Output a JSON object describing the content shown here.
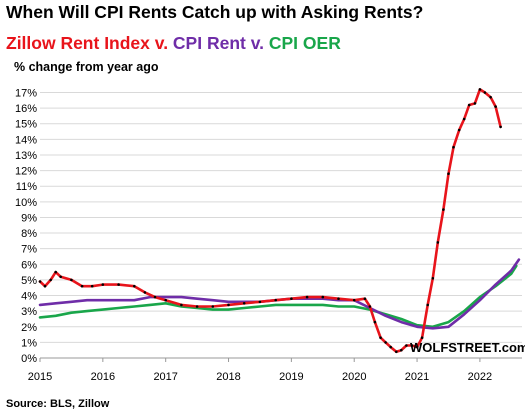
{
  "chart_data": {
    "type": "line",
    "title": "When Will CPI Rents Catch up with Asking Rents?",
    "subtitle_parts": [
      {
        "text": "Zillow Rent Index v. ",
        "color": "#e8141b"
      },
      {
        "text": "CPI Rent v. ",
        "color": "#6f2da8"
      },
      {
        "text": "CPI OER",
        "color": "#19a64a"
      }
    ],
    "ylabel": "% change from year ago",
    "source": "Source: BLS, Zillow",
    "brand": "WOLFSTREET.com",
    "xlim": [
      2015.0,
      2022.67
    ],
    "ylim": [
      0,
      17.8
    ],
    "x_ticks": [
      2015,
      2016,
      2017,
      2018,
      2019,
      2020,
      2021,
      2022
    ],
    "x_tick_labels": [
      "2015",
      "2016",
      "2017",
      "2018",
      "2019",
      "2020",
      "2021",
      "2022"
    ],
    "y_ticks": [
      0,
      1,
      2,
      3,
      4,
      5,
      6,
      7,
      8,
      9,
      10,
      11,
      12,
      13,
      14,
      15,
      16,
      17
    ],
    "y_tick_labels": [
      "0%",
      "1%",
      "2%",
      "3%",
      "4%",
      "5%",
      "6%",
      "7%",
      "8%",
      "9%",
      "10%",
      "11%",
      "12%",
      "13%",
      "14%",
      "15%",
      "16%",
      "17%"
    ],
    "grid": true,
    "series": [
      {
        "name": "CPI OER",
        "color": "#19a64a",
        "markers": false,
        "points": [
          [
            2015.0,
            2.6
          ],
          [
            2015.25,
            2.7
          ],
          [
            2015.5,
            2.9
          ],
          [
            2015.75,
            3.0
          ],
          [
            2016.0,
            3.1
          ],
          [
            2016.25,
            3.2
          ],
          [
            2016.5,
            3.3
          ],
          [
            2016.75,
            3.4
          ],
          [
            2017.0,
            3.5
          ],
          [
            2017.25,
            3.3
          ],
          [
            2017.5,
            3.2
          ],
          [
            2017.75,
            3.1
          ],
          [
            2018.0,
            3.1
          ],
          [
            2018.25,
            3.2
          ],
          [
            2018.5,
            3.3
          ],
          [
            2018.75,
            3.4
          ],
          [
            2019.0,
            3.4
          ],
          [
            2019.25,
            3.4
          ],
          [
            2019.5,
            3.4
          ],
          [
            2019.75,
            3.3
          ],
          [
            2020.0,
            3.3
          ],
          [
            2020.25,
            3.1
          ],
          [
            2020.5,
            2.8
          ],
          [
            2020.75,
            2.5
          ],
          [
            2021.0,
            2.1
          ],
          [
            2021.25,
            2.0
          ],
          [
            2021.5,
            2.3
          ],
          [
            2021.75,
            3.0
          ],
          [
            2022.0,
            3.9
          ],
          [
            2022.25,
            4.6
          ],
          [
            2022.5,
            5.4
          ],
          [
            2022.58,
            5.9
          ]
        ]
      },
      {
        "name": "CPI Rent",
        "color": "#6f2da8",
        "markers": false,
        "points": [
          [
            2015.0,
            3.4
          ],
          [
            2015.25,
            3.5
          ],
          [
            2015.5,
            3.6
          ],
          [
            2015.75,
            3.7
          ],
          [
            2016.0,
            3.7
          ],
          [
            2016.25,
            3.7
          ],
          [
            2016.5,
            3.7
          ],
          [
            2016.75,
            3.9
          ],
          [
            2017.0,
            3.9
          ],
          [
            2017.25,
            3.9
          ],
          [
            2017.5,
            3.8
          ],
          [
            2017.75,
            3.7
          ],
          [
            2018.0,
            3.6
          ],
          [
            2018.25,
            3.6
          ],
          [
            2018.5,
            3.6
          ],
          [
            2018.75,
            3.7
          ],
          [
            2019.0,
            3.8
          ],
          [
            2019.25,
            3.8
          ],
          [
            2019.5,
            3.8
          ],
          [
            2019.75,
            3.7
          ],
          [
            2020.0,
            3.7
          ],
          [
            2020.25,
            3.2
          ],
          [
            2020.5,
            2.7
          ],
          [
            2020.75,
            2.3
          ],
          [
            2021.0,
            2.0
          ],
          [
            2021.25,
            1.9
          ],
          [
            2021.5,
            2.0
          ],
          [
            2021.75,
            2.8
          ],
          [
            2022.0,
            3.7
          ],
          [
            2022.25,
            4.7
          ],
          [
            2022.5,
            5.6
          ],
          [
            2022.62,
            6.3
          ]
        ]
      },
      {
        "name": "Zillow Rent Index",
        "color": "#e8141b",
        "markers": true,
        "points": [
          [
            2015.0,
            4.9
          ],
          [
            2015.08,
            4.6
          ],
          [
            2015.17,
            5.0
          ],
          [
            2015.25,
            5.5
          ],
          [
            2015.33,
            5.2
          ],
          [
            2015.5,
            5.0
          ],
          [
            2015.67,
            4.6
          ],
          [
            2015.83,
            4.6
          ],
          [
            2016.0,
            4.7
          ],
          [
            2016.25,
            4.7
          ],
          [
            2016.5,
            4.6
          ],
          [
            2016.67,
            4.2
          ],
          [
            2016.83,
            3.9
          ],
          [
            2017.0,
            3.7
          ],
          [
            2017.25,
            3.4
          ],
          [
            2017.5,
            3.3
          ],
          [
            2017.75,
            3.3
          ],
          [
            2018.0,
            3.4
          ],
          [
            2018.25,
            3.5
          ],
          [
            2018.5,
            3.6
          ],
          [
            2018.75,
            3.7
          ],
          [
            2019.0,
            3.8
          ],
          [
            2019.25,
            3.9
          ],
          [
            2019.5,
            3.9
          ],
          [
            2019.75,
            3.8
          ],
          [
            2020.0,
            3.7
          ],
          [
            2020.17,
            3.8
          ],
          [
            2020.25,
            3.3
          ],
          [
            2020.33,
            2.3
          ],
          [
            2020.42,
            1.3
          ],
          [
            2020.5,
            1.0
          ],
          [
            2020.58,
            0.7
          ],
          [
            2020.67,
            0.4
          ],
          [
            2020.75,
            0.5
          ],
          [
            2020.83,
            0.8
          ],
          [
            2020.92,
            0.8
          ],
          [
            2021.0,
            0.7
          ],
          [
            2021.08,
            1.3
          ],
          [
            2021.17,
            3.4
          ],
          [
            2021.25,
            5.1
          ],
          [
            2021.33,
            7.4
          ],
          [
            2021.42,
            9.5
          ],
          [
            2021.5,
            11.8
          ],
          [
            2021.58,
            13.5
          ],
          [
            2021.67,
            14.6
          ],
          [
            2021.75,
            15.3
          ],
          [
            2021.83,
            16.2
          ],
          [
            2021.92,
            16.3
          ],
          [
            2022.0,
            17.2
          ],
          [
            2022.08,
            17.0
          ],
          [
            2022.17,
            16.7
          ],
          [
            2022.25,
            16.1
          ],
          [
            2022.33,
            14.8
          ]
        ]
      }
    ]
  }
}
